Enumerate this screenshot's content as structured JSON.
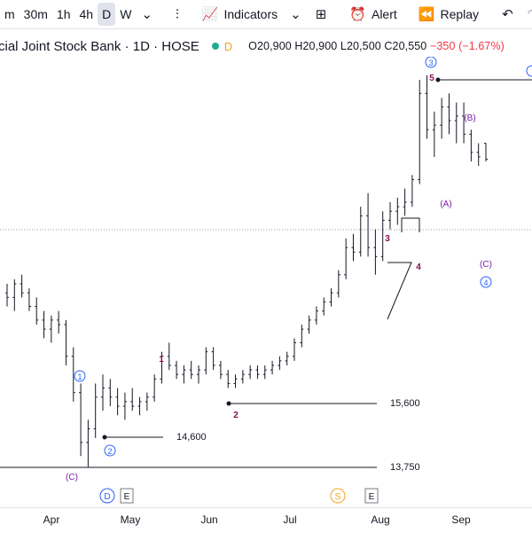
{
  "toolbar": {
    "timeframes": [
      "m",
      "30m",
      "1h",
      "4h",
      "D",
      "W"
    ],
    "active_timeframe": "D",
    "indicators_label": "Indicators",
    "alert_label": "Alert",
    "replay_label": "Replay"
  },
  "legend": {
    "title": "cial Joint Stock Bank · 1D · HOSE",
    "d_badge": "D",
    "open": "O20,900",
    "high": "H20,900",
    "low": "L20,500",
    "close": "C20,550",
    "change": "−350 (−1.67%)"
  },
  "x_axis": [
    "Apr",
    "May",
    "Jun",
    "Jul",
    "Aug",
    "Sep"
  ],
  "chart_data": {
    "type": "ohlc",
    "title": "",
    "reference_levels": [
      15600,
      14600,
      13750
    ],
    "level_labels": [
      "15,600",
      "14,600",
      "13,750"
    ],
    "wave_labels_red": [
      "1",
      "2",
      "3",
      "4",
      "5"
    ],
    "wave_labels_purple": [
      "(A)",
      "(B)",
      "(C)",
      "(C)"
    ],
    "wave_labels_circle": [
      "1",
      "2",
      "3",
      "4"
    ],
    "markers": [
      "D",
      "E",
      "S",
      "E"
    ],
    "bars": [
      [
        17.6,
        17.8,
        17.3,
        17.5
      ],
      [
        17.5,
        17.9,
        17.2,
        17.8
      ],
      [
        17.8,
        18.0,
        17.5,
        17.6
      ],
      [
        17.6,
        17.7,
        17.2,
        17.3
      ],
      [
        17.3,
        17.5,
        16.9,
        17.0
      ],
      [
        17.0,
        17.2,
        16.6,
        16.8
      ],
      [
        16.8,
        17.1,
        16.5,
        17.0
      ],
      [
        17.0,
        17.2,
        16.7,
        16.9
      ],
      [
        16.9,
        17.0,
        16.0,
        16.2
      ],
      [
        16.2,
        16.4,
        15.2,
        15.4
      ],
      [
        15.4,
        15.6,
        14.0,
        14.3
      ],
      [
        14.3,
        14.8,
        13.75,
        14.6
      ],
      [
        14.6,
        15.6,
        14.4,
        15.3
      ],
      [
        15.3,
        15.8,
        15.0,
        15.5
      ],
      [
        15.5,
        15.7,
        15.1,
        15.3
      ],
      [
        15.3,
        15.5,
        14.9,
        15.1
      ],
      [
        15.1,
        15.4,
        14.8,
        15.2
      ],
      [
        15.2,
        15.5,
        15.0,
        15.1
      ],
      [
        15.1,
        15.3,
        14.9,
        15.2
      ],
      [
        15.2,
        15.4,
        15.0,
        15.3
      ],
      [
        15.3,
        15.8,
        15.2,
        15.7
      ],
      [
        15.7,
        16.3,
        15.6,
        16.2
      ],
      [
        16.2,
        16.5,
        15.9,
        16.0
      ],
      [
        16.0,
        16.1,
        15.7,
        15.8
      ],
      [
        15.8,
        16.0,
        15.6,
        15.9
      ],
      [
        15.9,
        16.1,
        15.7,
        15.8
      ],
      [
        15.8,
        16.0,
        15.6,
        15.9
      ],
      [
        15.9,
        16.4,
        15.8,
        16.3
      ],
      [
        16.3,
        16.4,
        15.9,
        16.0
      ],
      [
        16.0,
        16.1,
        15.7,
        15.8
      ],
      [
        15.8,
        15.9,
        15.5,
        15.6
      ],
      [
        15.6,
        15.8,
        15.5,
        15.7
      ],
      [
        15.7,
        15.9,
        15.6,
        15.8
      ],
      [
        15.8,
        16.0,
        15.7,
        15.9
      ],
      [
        15.9,
        16.0,
        15.7,
        15.8
      ],
      [
        15.8,
        16.0,
        15.7,
        15.9
      ],
      [
        15.9,
        16.1,
        15.8,
        16.0
      ],
      [
        16.0,
        16.2,
        15.9,
        16.1
      ],
      [
        16.1,
        16.3,
        16.0,
        16.2
      ],
      [
        16.2,
        16.6,
        16.1,
        16.5
      ],
      [
        16.5,
        16.9,
        16.4,
        16.8
      ],
      [
        16.8,
        17.1,
        16.7,
        17.0
      ],
      [
        17.0,
        17.3,
        16.9,
        17.2
      ],
      [
        17.2,
        17.5,
        17.1,
        17.4
      ],
      [
        17.4,
        17.7,
        17.3,
        17.6
      ],
      [
        17.6,
        18.1,
        17.5,
        18.0
      ],
      [
        18.0,
        18.8,
        17.9,
        18.6
      ],
      [
        18.6,
        18.9,
        18.3,
        18.5
      ],
      [
        18.5,
        19.5,
        18.4,
        19.3
      ],
      [
        19.3,
        19.8,
        18.4,
        18.6
      ],
      [
        18.6,
        19.0,
        18.0,
        18.4
      ],
      [
        18.4,
        19.4,
        18.3,
        19.2
      ],
      [
        19.2,
        19.6,
        19.0,
        19.4
      ],
      [
        19.4,
        19.7,
        19.1,
        19.5
      ],
      [
        19.5,
        19.9,
        19.3,
        19.6
      ],
      [
        19.6,
        20.2,
        19.5,
        20.1
      ],
      [
        20.1,
        22.3,
        20.0,
        22.0
      ],
      [
        22.0,
        22.4,
        21.0,
        21.2
      ],
      [
        21.2,
        21.6,
        20.6,
        21.3
      ],
      [
        21.3,
        21.9,
        21.0,
        21.7
      ],
      [
        21.7,
        22.0,
        21.1,
        21.4
      ],
      [
        21.4,
        21.8,
        20.9,
        21.5
      ],
      [
        21.5,
        21.8,
        20.9,
        21.1
      ],
      [
        21.1,
        21.2,
        20.5,
        20.7
      ],
      [
        20.7,
        20.9,
        20.4,
        20.6
      ],
      [
        20.9,
        20.9,
        20.5,
        20.55
      ]
    ]
  }
}
